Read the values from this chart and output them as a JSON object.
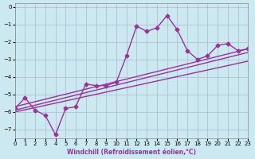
{
  "xlabel": "Windchill (Refroidissement éolien,°C)",
  "bg_color": "#cce8f0",
  "grid_color": "#aabbcc",
  "line_color": "#993399",
  "xlim": [
    0,
    23
  ],
  "ylim": [
    -7.5,
    0.2
  ],
  "xticks": [
    0,
    1,
    2,
    3,
    4,
    5,
    6,
    7,
    8,
    9,
    10,
    11,
    12,
    13,
    14,
    15,
    16,
    17,
    18,
    19,
    20,
    21,
    22,
    23
  ],
  "yticks": [
    0,
    -1,
    -2,
    -3,
    -4,
    -5,
    -6,
    -7
  ],
  "series1_x": [
    0,
    1,
    2,
    3,
    4,
    5,
    6,
    7,
    8,
    9,
    10,
    11,
    12,
    13,
    14,
    15,
    16,
    17,
    18,
    19,
    20,
    21,
    22,
    23
  ],
  "series1_y": [
    -5.8,
    -5.2,
    -5.9,
    -6.2,
    -7.3,
    -5.8,
    -5.7,
    -4.4,
    -4.5,
    -4.5,
    -4.3,
    -2.8,
    -1.1,
    -1.4,
    -1.2,
    -0.5,
    -1.3,
    -2.5,
    -3.0,
    -2.8,
    -2.2,
    -2.1,
    -2.5,
    -2.4
  ],
  "series2_x": [
    0,
    23
  ],
  "series2_y": [
    -5.9,
    -2.6
  ],
  "series3_x": [
    0,
    23
  ],
  "series3_y": [
    -6.0,
    -3.1
  ],
  "series4_x": [
    0,
    23
  ],
  "series4_y": [
    -5.7,
    -2.4
  ]
}
